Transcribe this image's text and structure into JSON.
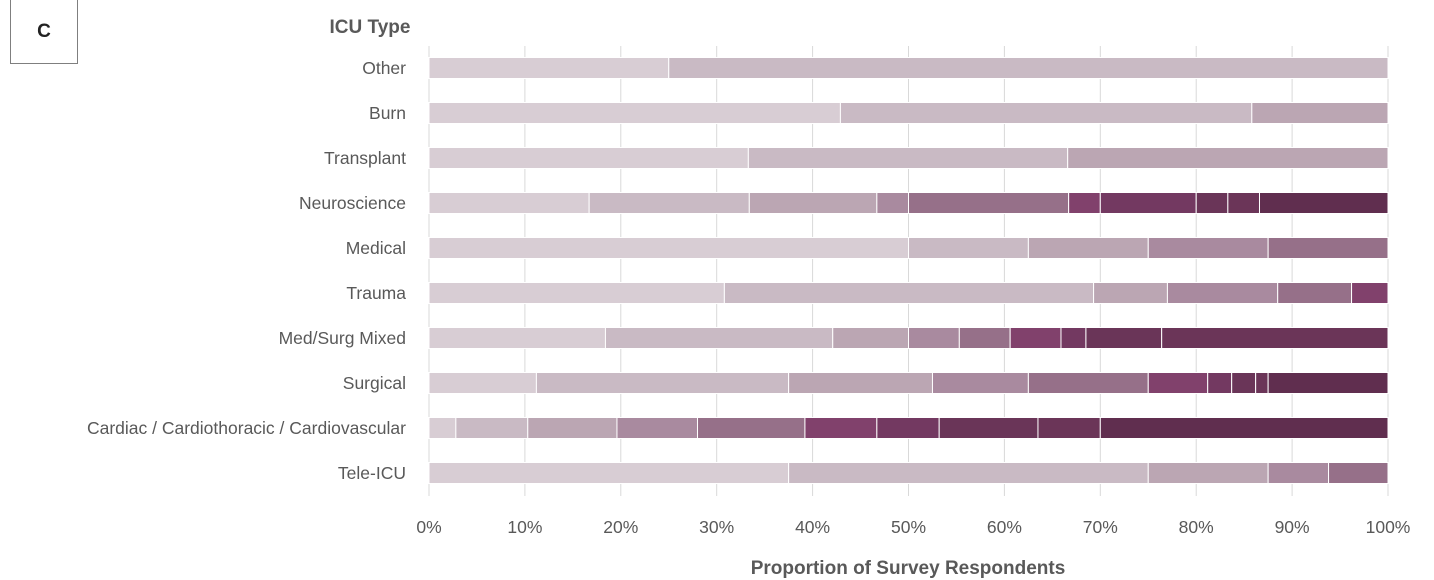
{
  "panel_label": "C",
  "chart_data": {
    "type": "bar",
    "orientation": "horizontal",
    "stacked": "percent",
    "ylabel": "ICU Type",
    "xlabel": "Proportion of Survey Respondents",
    "xlim": [
      0,
      100
    ],
    "xticks": [
      "0%",
      "10%",
      "20%",
      "30%",
      "40%",
      "50%",
      "60%",
      "70%",
      "80%",
      "90%",
      "100%"
    ],
    "grid": "vertical",
    "legend": "none",
    "colors": [
      "#d8cdd4",
      "#c9bac4",
      "#bba6b3",
      "#a98a9f",
      "#967089",
      "#81416c",
      "#733961",
      "#6a3558",
      "#6b3558",
      "#602e4f",
      "#5a2b4a"
    ],
    "categories": [
      "Other",
      "Burn",
      "Transplant",
      "Neuroscience",
      "Medical",
      "Trauma",
      "Med/Surg Mixed",
      "Surgical",
      "Cardiac / Cardiothoracic / Cardiovascular",
      "Tele-ICU"
    ],
    "bars": [
      {
        "category": "Other",
        "segments": [
          25,
          75
        ]
      },
      {
        "category": "Burn",
        "segments": [
          42.9,
          42.9,
          14.2
        ]
      },
      {
        "category": "Transplant",
        "segments": [
          33.3,
          33.3,
          33.4
        ]
      },
      {
        "category": "Neuroscience",
        "segments": [
          16.7,
          16.7,
          13.3,
          3.3,
          16.7,
          3.3,
          10,
          3.3,
          3.3,
          13.4
        ]
      },
      {
        "category": "Medical",
        "segments": [
          50,
          12.5,
          12.5,
          12.5,
          12.5
        ]
      },
      {
        "category": "Trauma",
        "segments": [
          30.8,
          38.5,
          7.7,
          11.5,
          7.7,
          3.8
        ]
      },
      {
        "category": "Med/Surg Mixed",
        "segments": [
          18.4,
          23.7,
          7.9,
          5.3,
          5.3,
          5.3,
          2.6,
          7.9,
          23.6
        ]
      },
      {
        "category": "Surgical",
        "segments": [
          11.2,
          26.3,
          15,
          10,
          12.5,
          6.2,
          2.5,
          2.5,
          1.3,
          12.5
        ]
      },
      {
        "category": "Cardiac / Cardiothoracic / Cardiovascular",
        "segments": [
          2.8,
          7.5,
          9.3,
          8.4,
          11.2,
          7.5,
          6.5,
          10.3,
          6.5,
          30
        ]
      },
      {
        "category": "Tele-ICU",
        "segments": [
          37.5,
          37.5,
          12.5,
          6.3,
          6.2
        ]
      }
    ]
  }
}
